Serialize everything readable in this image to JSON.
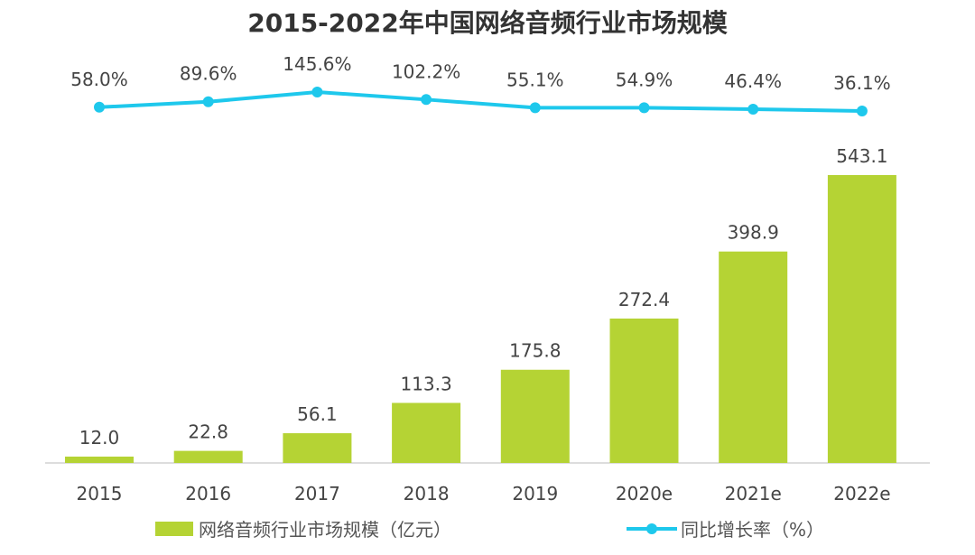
{
  "chart_data": {
    "type": "bar",
    "title": "2015-2022年中国网络音频行业市场规模",
    "categories": [
      "2015",
      "2016",
      "2017",
      "2018",
      "2019",
      "2020e",
      "2021e",
      "2022e"
    ],
    "series": [
      {
        "name": "网络音频行业市场规模（亿元）",
        "type": "bar",
        "color": "#b5d334",
        "values": [
          12.0,
          22.8,
          56.1,
          113.3,
          175.8,
          272.4,
          398.9,
          543.1
        ],
        "labels": [
          "12.0",
          "22.8",
          "56.1",
          "113.3",
          "175.8",
          "272.4",
          "398.9",
          "543.1"
        ]
      },
      {
        "name": "同比增长率（%）",
        "type": "line",
        "color": "#1ec8ec",
        "values": [
          58.0,
          89.6,
          145.6,
          102.2,
          55.1,
          54.9,
          46.4,
          36.1
        ],
        "labels": [
          "58.0%",
          "89.6%",
          "145.6%",
          "102.2%",
          "55.1%",
          "54.9%",
          "46.4%",
          "36.1%"
        ]
      }
    ],
    "legend": "bottom",
    "grid": false
  }
}
